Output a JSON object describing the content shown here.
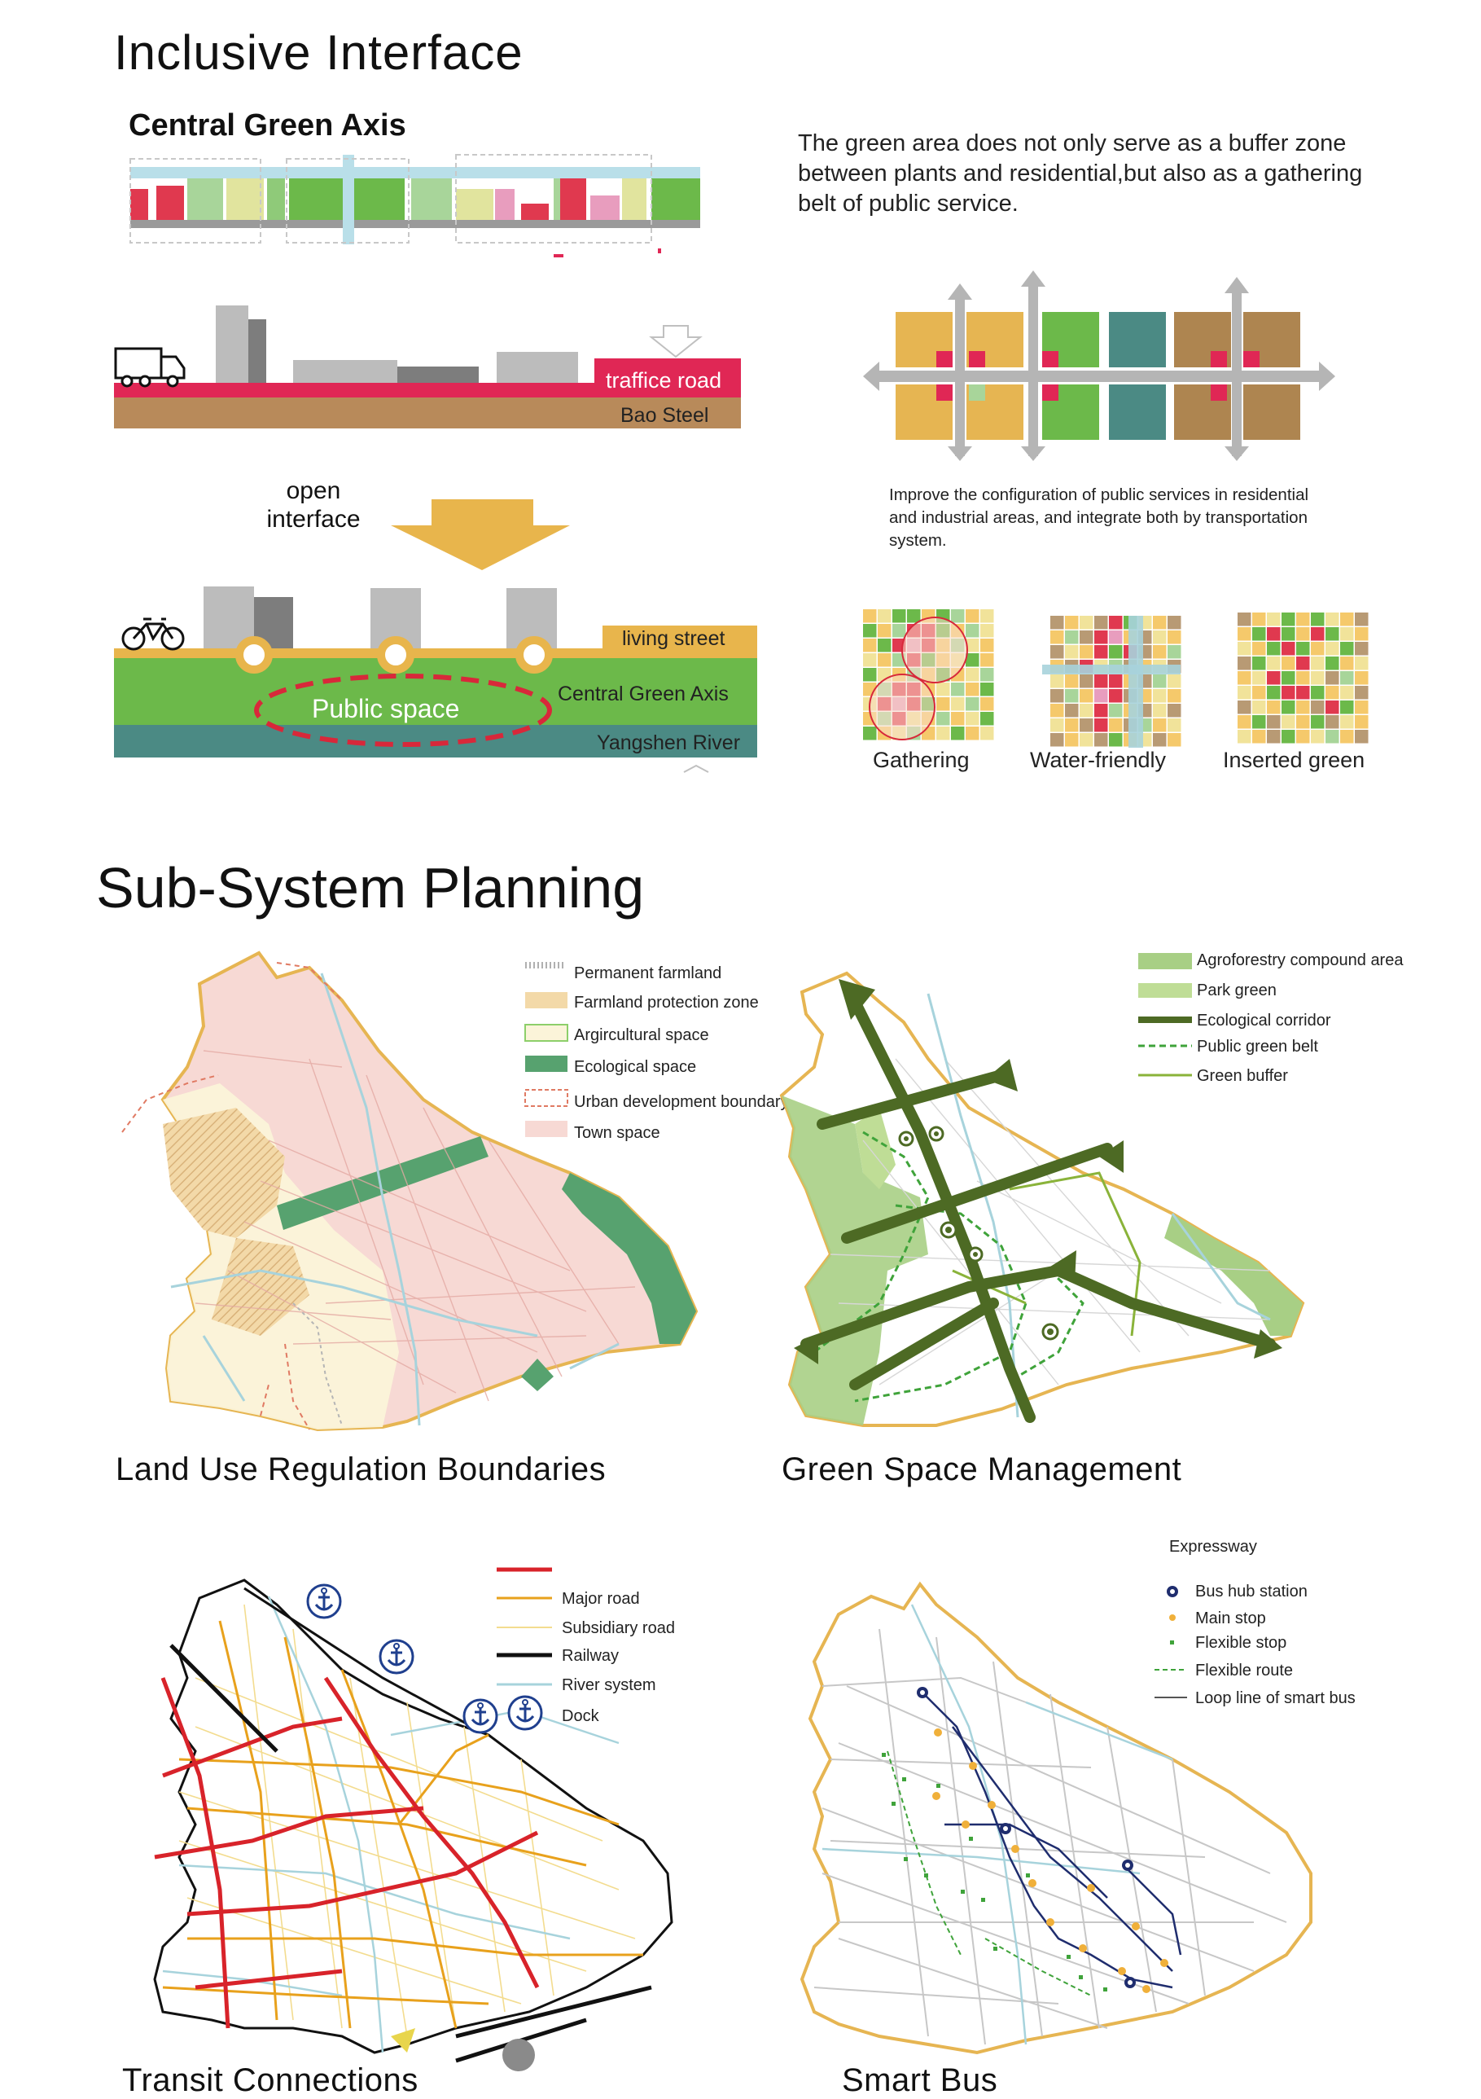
{
  "titles": {
    "inclusive": "Inclusive Interface",
    "central_axis": "Central Green Axis",
    "subsystem": "Sub-System Planning"
  },
  "description": "The green area does not only serve as a buffer zone between plants and residential,but also as a gathering belt of public service.",
  "section_labels": {
    "traffic_road": "traffice road",
    "bao_steel": "Bao Steel",
    "open_interface": "open\ninterface",
    "living_street": "living street",
    "public_space": "Public space",
    "central_green_axis": "Central Green Axis",
    "yangshen_river": "Yangshen River"
  },
  "integration_note": "Improve the configuration of public services in residential and industrial areas, and integrate both by transportation system.",
  "patterns": [
    "Gathering",
    "Water-friendly",
    "Inserted green"
  ],
  "maps": {
    "land_use": {
      "title": "Land Use Regulation Boundaries",
      "legend": [
        "Permanent farmland",
        "Farmland protection zone",
        "Argircultural space",
        "Ecological space",
        "Urban development boundary",
        "Town space"
      ]
    },
    "green_space": {
      "title": "Green Space Management",
      "legend": [
        "Agroforestry compound area",
        "Park green",
        "Ecological corridor",
        "Public green belt",
        "Green buffer"
      ]
    },
    "transit": {
      "title": "Transit Connections",
      "legend": [
        "Major road",
        "Subsidiary road",
        "Railway",
        "River system",
        "Dock"
      ]
    },
    "smart_bus": {
      "title": "Smart Bus",
      "legend": [
        "Expressway",
        "Bus hub station",
        "Main stop",
        "Flexible stop",
        "Flexible route",
        "Loop line of smart bus"
      ]
    }
  },
  "colors": {
    "traffic_red": "#e02755",
    "bao_steel_brown": "#b88a5a",
    "living_yellow": "#e8b54c",
    "axis_green": "#6cb94a",
    "river_teal": "#4b8a84",
    "public_dashed": "#d8283a",
    "town_pink": "#f7d9d4",
    "eco_green": "#57a26f",
    "corridor_green": "#4d6a24",
    "major_orange": "#e8a11c",
    "expressway_red": "#d8232a",
    "bus_navy": "#1f2d6e",
    "river_blue": "#a7d3dc"
  },
  "icons": [
    "truck-icon",
    "bicycle-icon",
    "anchor-icon",
    "arrow-down-icon"
  ]
}
